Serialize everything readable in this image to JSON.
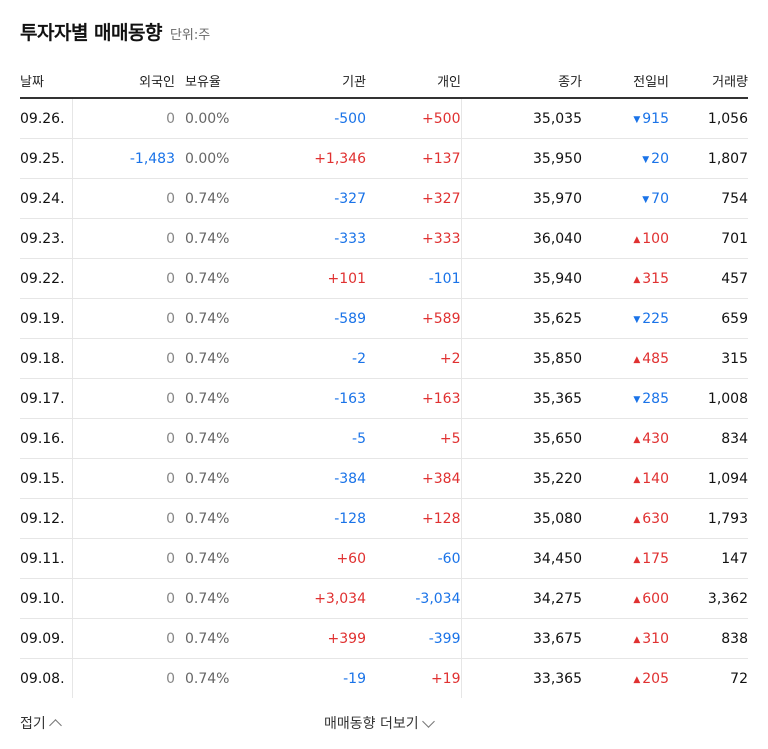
{
  "header": {
    "title": "투자자별 매매동향",
    "unit": "단위:주"
  },
  "columns": {
    "date": "날짜",
    "foreign": "외국인",
    "ownership": "보유율",
    "institution": "기관",
    "individual": "개인",
    "close": "종가",
    "change": "전일비",
    "volume": "거래량"
  },
  "rows": [
    {
      "date": "09.26.",
      "foreign": "0",
      "ownership": "0.00%",
      "institution": "-500",
      "individual": "+500",
      "close": "35,035",
      "change": "915",
      "dir": "down",
      "volume": "1,056"
    },
    {
      "date": "09.25.",
      "foreign": "-1,483",
      "ownership": "0.00%",
      "institution": "+1,346",
      "individual": "+137",
      "close": "35,950",
      "change": "20",
      "dir": "down",
      "volume": "1,807"
    },
    {
      "date": "09.24.",
      "foreign": "0",
      "ownership": "0.74%",
      "institution": "-327",
      "individual": "+327",
      "close": "35,970",
      "change": "70",
      "dir": "down",
      "volume": "754"
    },
    {
      "date": "09.23.",
      "foreign": "0",
      "ownership": "0.74%",
      "institution": "-333",
      "individual": "+333",
      "close": "36,040",
      "change": "100",
      "dir": "up",
      "volume": "701"
    },
    {
      "date": "09.22.",
      "foreign": "0",
      "ownership": "0.74%",
      "institution": "+101",
      "individual": "-101",
      "close": "35,940",
      "change": "315",
      "dir": "up",
      "volume": "457"
    },
    {
      "date": "09.19.",
      "foreign": "0",
      "ownership": "0.74%",
      "institution": "-589",
      "individual": "+589",
      "close": "35,625",
      "change": "225",
      "dir": "down",
      "volume": "659"
    },
    {
      "date": "09.18.",
      "foreign": "0",
      "ownership": "0.74%",
      "institution": "-2",
      "individual": "+2",
      "close": "35,850",
      "change": "485",
      "dir": "up",
      "volume": "315"
    },
    {
      "date": "09.17.",
      "foreign": "0",
      "ownership": "0.74%",
      "institution": "-163",
      "individual": "+163",
      "close": "35,365",
      "change": "285",
      "dir": "down",
      "volume": "1,008"
    },
    {
      "date": "09.16.",
      "foreign": "0",
      "ownership": "0.74%",
      "institution": "-5",
      "individual": "+5",
      "close": "35,650",
      "change": "430",
      "dir": "up",
      "volume": "834"
    },
    {
      "date": "09.15.",
      "foreign": "0",
      "ownership": "0.74%",
      "institution": "-384",
      "individual": "+384",
      "close": "35,220",
      "change": "140",
      "dir": "up",
      "volume": "1,094"
    },
    {
      "date": "09.12.",
      "foreign": "0",
      "ownership": "0.74%",
      "institution": "-128",
      "individual": "+128",
      "close": "35,080",
      "change": "630",
      "dir": "up",
      "volume": "1,793"
    },
    {
      "date": "09.11.",
      "foreign": "0",
      "ownership": "0.74%",
      "institution": "+60",
      "individual": "-60",
      "close": "34,450",
      "change": "175",
      "dir": "up",
      "volume": "147"
    },
    {
      "date": "09.10.",
      "foreign": "0",
      "ownership": "0.74%",
      "institution": "+3,034",
      "individual": "-3,034",
      "close": "34,275",
      "change": "600",
      "dir": "up",
      "volume": "3,362"
    },
    {
      "date": "09.09.",
      "foreign": "0",
      "ownership": "0.74%",
      "institution": "+399",
      "individual": "-399",
      "close": "33,675",
      "change": "310",
      "dir": "up",
      "volume": "838"
    },
    {
      "date": "09.08.",
      "foreign": "0",
      "ownership": "0.74%",
      "institution": "-19",
      "individual": "+19",
      "close": "33,365",
      "change": "205",
      "dir": "up",
      "volume": "72"
    }
  ],
  "footer": {
    "fold": "접기",
    "more": "매매동향 더보기"
  },
  "colors": {
    "positive": "#e03131",
    "negative": "#1a73e8"
  }
}
